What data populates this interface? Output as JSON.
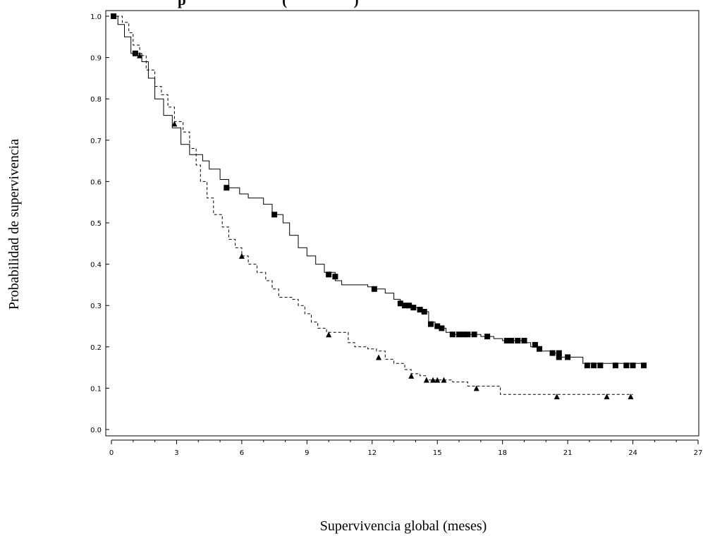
{
  "title_fragment": "p                          (                  )",
  "chart_data": {
    "type": "line",
    "subtype": "kaplan-meier-step",
    "title": "p                          (                  )",
    "xlabel": "Supervivencia global (meses)",
    "ylabel": "Probabilidad de supervivencia",
    "xlim": [
      0,
      27
    ],
    "ylim": [
      0,
      1
    ],
    "x_ticks": [
      0,
      3,
      6,
      9,
      12,
      15,
      18,
      21,
      24,
      27
    ],
    "y_ticks": [
      0.0,
      0.1,
      0.2,
      0.3,
      0.4,
      0.5,
      0.6,
      0.7,
      0.8,
      0.9,
      1.0
    ],
    "x_tick_labels": [
      "0",
      "3",
      "6",
      "9",
      "12",
      "15",
      "18",
      "21",
      "24",
      "27"
    ],
    "y_tick_labels": [
      "0.0",
      "0.1",
      "0.2",
      "0.3",
      "0.4",
      "0.5",
      "0.6",
      "0.7",
      "0.8",
      "0.9",
      "1.0"
    ],
    "grid": false,
    "legend": "none",
    "series": [
      {
        "line_style": "solid",
        "marker": "square",
        "color": "#000000",
        "step_points": [
          [
            0,
            1.0
          ],
          [
            0.3,
            0.98
          ],
          [
            0.6,
            0.95
          ],
          [
            0.9,
            0.91
          ],
          [
            1.4,
            0.89
          ],
          [
            1.7,
            0.85
          ],
          [
            2.0,
            0.8
          ],
          [
            2.4,
            0.76
          ],
          [
            2.8,
            0.73
          ],
          [
            3.2,
            0.69
          ],
          [
            3.6,
            0.665
          ],
          [
            4.2,
            0.65
          ],
          [
            4.5,
            0.63
          ],
          [
            5.0,
            0.605
          ],
          [
            5.4,
            0.585
          ],
          [
            5.9,
            0.57
          ],
          [
            6.3,
            0.56
          ],
          [
            7.0,
            0.545
          ],
          [
            7.4,
            0.52
          ],
          [
            7.9,
            0.5
          ],
          [
            8.2,
            0.47
          ],
          [
            8.6,
            0.44
          ],
          [
            9.0,
            0.42
          ],
          [
            9.4,
            0.4
          ],
          [
            9.8,
            0.38
          ],
          [
            10.3,
            0.36
          ],
          [
            10.6,
            0.35
          ],
          [
            11.8,
            0.345
          ],
          [
            12.0,
            0.34
          ],
          [
            12.6,
            0.33
          ],
          [
            13.0,
            0.315
          ],
          [
            13.3,
            0.3
          ],
          [
            13.8,
            0.295
          ],
          [
            14.2,
            0.285
          ],
          [
            14.6,
            0.26
          ],
          [
            14.9,
            0.245
          ],
          [
            15.4,
            0.235
          ],
          [
            15.7,
            0.23
          ],
          [
            17.0,
            0.225
          ],
          [
            17.6,
            0.22
          ],
          [
            18.0,
            0.215
          ],
          [
            19.0,
            0.21
          ],
          [
            19.3,
            0.2
          ],
          [
            19.6,
            0.19
          ],
          [
            20.3,
            0.185
          ],
          [
            20.6,
            0.175
          ],
          [
            21.7,
            0.16
          ],
          [
            24.5,
            0.16
          ]
        ],
        "censor_points": [
          [
            0.1,
            1.0
          ],
          [
            1.1,
            0.91
          ],
          [
            5.3,
            0.585
          ],
          [
            7.5,
            0.52
          ],
          [
            10.0,
            0.375
          ],
          [
            10.3,
            0.37
          ],
          [
            12.1,
            0.34
          ],
          [
            13.3,
            0.305
          ],
          [
            13.5,
            0.3
          ],
          [
            13.7,
            0.3
          ],
          [
            13.9,
            0.295
          ],
          [
            14.2,
            0.29
          ],
          [
            14.4,
            0.285
          ],
          [
            14.7,
            0.255
          ],
          [
            15.0,
            0.25
          ],
          [
            15.2,
            0.245
          ],
          [
            15.7,
            0.23
          ],
          [
            16.0,
            0.23
          ],
          [
            16.2,
            0.23
          ],
          [
            16.4,
            0.23
          ],
          [
            16.7,
            0.23
          ],
          [
            17.3,
            0.225
          ],
          [
            18.2,
            0.215
          ],
          [
            18.4,
            0.215
          ],
          [
            18.7,
            0.215
          ],
          [
            19.0,
            0.215
          ],
          [
            19.5,
            0.205
          ],
          [
            19.7,
            0.195
          ],
          [
            20.3,
            0.185
          ],
          [
            20.6,
            0.185
          ],
          [
            20.6,
            0.175
          ],
          [
            21.0,
            0.175
          ],
          [
            21.9,
            0.155
          ],
          [
            22.2,
            0.155
          ],
          [
            22.5,
            0.155
          ],
          [
            23.2,
            0.155
          ],
          [
            23.7,
            0.155
          ],
          [
            24.0,
            0.155
          ],
          [
            24.5,
            0.155
          ]
        ]
      },
      {
        "line_style": "dashed",
        "marker": "triangle",
        "color": "#000000",
        "step_points": [
          [
            0,
            1.0
          ],
          [
            0.5,
            0.985
          ],
          [
            0.8,
            0.96
          ],
          [
            1.0,
            0.93
          ],
          [
            1.3,
            0.905
          ],
          [
            1.6,
            0.87
          ],
          [
            2.0,
            0.83
          ],
          [
            2.3,
            0.81
          ],
          [
            2.6,
            0.78
          ],
          [
            2.9,
            0.745
          ],
          [
            3.3,
            0.72
          ],
          [
            3.6,
            0.68
          ],
          [
            3.9,
            0.64
          ],
          [
            4.1,
            0.6
          ],
          [
            4.4,
            0.56
          ],
          [
            4.7,
            0.52
          ],
          [
            5.1,
            0.49
          ],
          [
            5.4,
            0.46
          ],
          [
            5.7,
            0.44
          ],
          [
            6.0,
            0.42
          ],
          [
            6.3,
            0.4
          ],
          [
            6.7,
            0.38
          ],
          [
            7.1,
            0.36
          ],
          [
            7.4,
            0.34
          ],
          [
            7.7,
            0.32
          ],
          [
            8.3,
            0.315
          ],
          [
            8.6,
            0.3
          ],
          [
            8.9,
            0.28
          ],
          [
            9.2,
            0.26
          ],
          [
            9.5,
            0.245
          ],
          [
            9.9,
            0.235
          ],
          [
            10.9,
            0.21
          ],
          [
            11.2,
            0.2
          ],
          [
            11.8,
            0.195
          ],
          [
            12.2,
            0.19
          ],
          [
            12.6,
            0.17
          ],
          [
            13.0,
            0.16
          ],
          [
            13.5,
            0.145
          ],
          [
            13.8,
            0.135
          ],
          [
            14.2,
            0.13
          ],
          [
            14.5,
            0.12
          ],
          [
            15.7,
            0.115
          ],
          [
            16.4,
            0.105
          ],
          [
            17.9,
            0.085
          ],
          [
            24.0,
            0.085
          ]
        ],
        "censor_points": [
          [
            1.3,
            0.905
          ],
          [
            2.9,
            0.74
          ],
          [
            6.0,
            0.42
          ],
          [
            10.0,
            0.23
          ],
          [
            12.3,
            0.175
          ],
          [
            13.8,
            0.13
          ],
          [
            14.5,
            0.12
          ],
          [
            14.8,
            0.12
          ],
          [
            15.0,
            0.12
          ],
          [
            15.3,
            0.12
          ],
          [
            16.8,
            0.1
          ],
          [
            20.5,
            0.08
          ],
          [
            22.8,
            0.08
          ],
          [
            23.9,
            0.08
          ]
        ]
      }
    ]
  }
}
